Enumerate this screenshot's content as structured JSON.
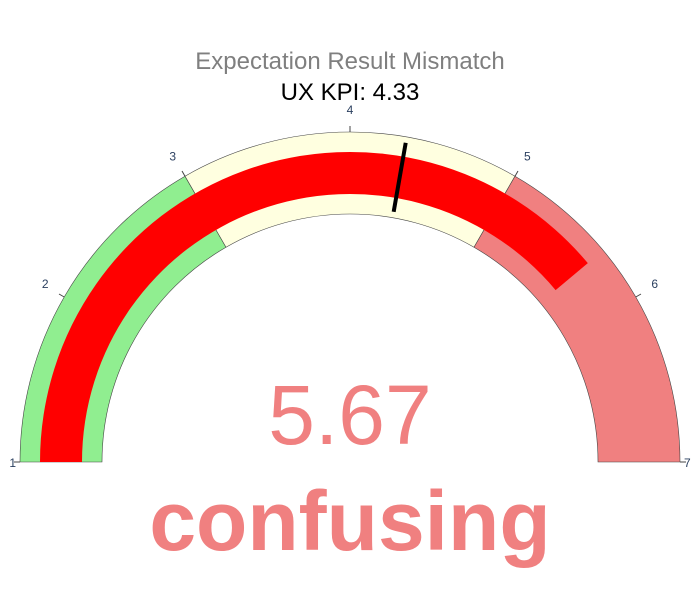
{
  "chart_data": {
    "type": "gauge",
    "title": "Expectation Result Mismatch",
    "subtitle": "UX KPI: 4.33",
    "range": [
      1,
      7
    ],
    "ticks": [
      "1",
      "2",
      "3",
      "4",
      "5",
      "6",
      "7"
    ],
    "value": 5.67,
    "value_label": "5.67",
    "verdict": "confusing",
    "threshold": 4.33,
    "steps": [
      {
        "range": [
          1,
          3
        ],
        "color": "#90ee90"
      },
      {
        "range": [
          3,
          5
        ],
        "color": "#ffffe0"
      },
      {
        "range": [
          5,
          7
        ],
        "color": "#f08080"
      }
    ],
    "bar_color": "#ff0000",
    "threshold_color": "#000000",
    "value_color": "#f08080",
    "title_color": "#7f7f7f",
    "subtitle_color": "#000000",
    "tick_color": "#2a3f5f"
  }
}
